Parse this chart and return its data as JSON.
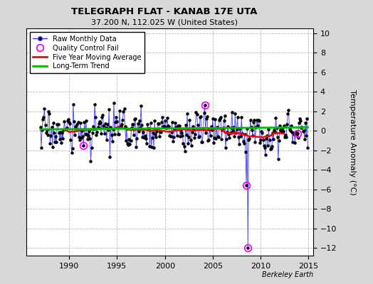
{
  "title": "TELEGRAPH FLAT - KANAB 17E UTA",
  "subtitle": "37.200 N, 112.025 W (United States)",
  "ylabel": "Temperature Anomaly (°C)",
  "attribution": "Berkeley Earth",
  "xlim": [
    1985.5,
    2015.5
  ],
  "ylim": [
    -12.8,
    10.5
  ],
  "yticks": [
    -12,
    -10,
    -8,
    -6,
    -4,
    -2,
    0,
    2,
    4,
    6,
    8,
    10
  ],
  "xticks": [
    1990,
    1995,
    2000,
    2005,
    2010,
    2015
  ],
  "seed": 17,
  "start_year": 1987,
  "end_year": 2014,
  "bg_color": "#d8d8d8",
  "plot_bg": "#ffffff",
  "line_color": "#3333ff",
  "marker_color": "#000000",
  "qc_color": "#ff00ff",
  "moving_avg_color": "#ff0000",
  "trend_color": "#00bb00",
  "grid_color": "#bbbbbb",
  "qc_points": [
    {
      "year": 1991.5,
      "value": -1.5
    },
    {
      "year": 2004.2,
      "value": 2.6
    },
    {
      "year": 2008.7,
      "value": -5.6
    },
    {
      "year": 2008.7,
      "value": -12.0
    },
    {
      "year": 2013.9,
      "value": -0.3
    }
  ]
}
